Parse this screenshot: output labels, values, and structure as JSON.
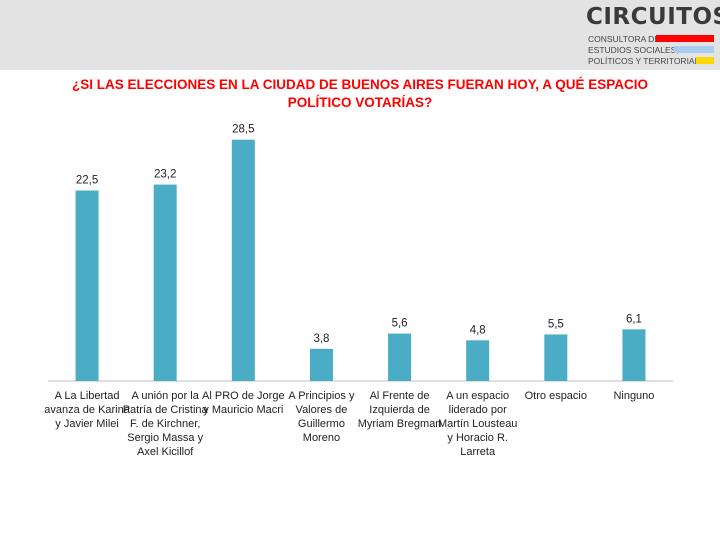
{
  "header": {
    "brand": "CIRCUITOS",
    "tagline_lines": [
      "CONSULTORA DE",
      "ESTUDIOS SOCIALES,",
      "POLÍTICOS Y TERRITORIALES"
    ],
    "bar_colors": [
      "#ff0000",
      "#a9cdf0",
      "#ffd700"
    ]
  },
  "chart_data": {
    "type": "bar",
    "title": "¿SI LAS ELECCIONES EN LA CIUDAD DE BUENOS AIRES FUERAN HOY, A QUÉ ESPACIO POLÍTICO VOTARÍAS?",
    "categories": [
      "A La Libertad avanza de Karina y Javier Milei",
      "A unión por la Patría de Cristina F. de Kirchner, Sergio Massa y Axel Kicillof",
      "Al PRO de Jorge y Mauricio Macri",
      "A Principios y Valores de Guillermo Moreno",
      "Al Frente de Izquierda de Myriam Bregman",
      "A un espacio liderado por Martín Lousteau y Horacio R. Larreta",
      "Otro espacio",
      "Ninguno"
    ],
    "values": [
      22.5,
      23.2,
      28.5,
      3.8,
      5.6,
      4.8,
      5.5,
      6.1
    ],
    "value_labels": [
      "22,5",
      "23,2",
      "28,5",
      "3,8",
      "5,6",
      "4,8",
      "5,5",
      "6,1"
    ],
    "bar_color": "#4bacc6",
    "ylim": [
      0,
      30
    ],
    "grid": false,
    "legend": "none"
  }
}
